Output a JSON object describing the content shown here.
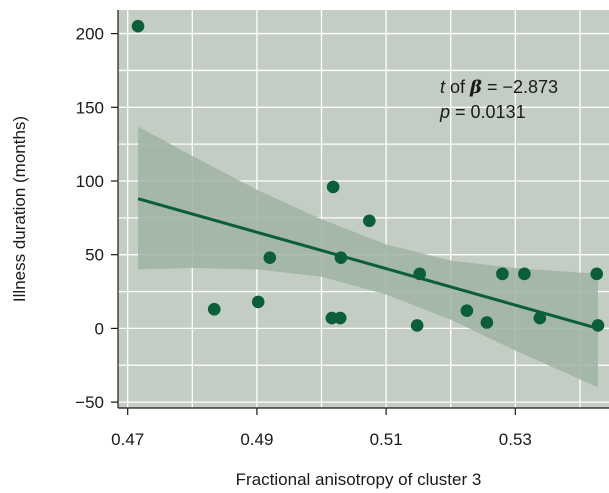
{
  "chart_data": {
    "type": "scatter",
    "title": "",
    "xlabel": "Fractional anisotropy of cluster 3",
    "ylabel": "Illness duration (months)",
    "xlim": [
      0.4685,
      0.5445
    ],
    "ylim": [
      -54,
      216
    ],
    "xticks": [
      0.47,
      0.49,
      0.51,
      0.53
    ],
    "xtick_labels": [
      "0.47",
      "0.49",
      "0.51",
      "0.53"
    ],
    "yticks": [
      -50,
      0,
      50,
      100,
      150,
      200
    ],
    "ytick_labels": [
      "−50",
      "0",
      "50",
      "100",
      "150",
      "200"
    ],
    "grid": true,
    "colors": {
      "panel": "#c3cdc3",
      "grid": "#ffffff",
      "band": "#9fb3a3",
      "line": "#0b5e3a",
      "point": "#0b5e3a"
    },
    "points": [
      {
        "x": 0.4716,
        "y": 205
      },
      {
        "x": 0.4834,
        "y": 13
      },
      {
        "x": 0.4902,
        "y": 18
      },
      {
        "x": 0.492,
        "y": 48
      },
      {
        "x": 0.5018,
        "y": 96
      },
      {
        "x": 0.5016,
        "y": 7
      },
      {
        "x": 0.5029,
        "y": 7
      },
      {
        "x": 0.503,
        "y": 48
      },
      {
        "x": 0.5074,
        "y": 73
      },
      {
        "x": 0.5148,
        "y": 2
      },
      {
        "x": 0.5152,
        "y": 37
      },
      {
        "x": 0.5225,
        "y": 12
      },
      {
        "x": 0.5256,
        "y": 4
      },
      {
        "x": 0.528,
        "y": 37
      },
      {
        "x": 0.5314,
        "y": 37
      },
      {
        "x": 0.5338,
        "y": 7
      },
      {
        "x": 0.5426,
        "y": 37
      },
      {
        "x": 0.5428,
        "y": 2
      }
    ],
    "fit_line": {
      "x": [
        0.4716,
        0.5428
      ],
      "y": [
        88,
        0
      ]
    },
    "confidence_band": {
      "x": [
        0.4716,
        0.48,
        0.49,
        0.5,
        0.51,
        0.52,
        0.53,
        0.5428
      ],
      "upper": [
        137,
        117,
        94,
        74,
        57,
        46,
        41,
        37
      ],
      "lower": [
        40,
        41,
        40,
        35,
        23,
        6,
        -15,
        -40
      ]
    },
    "annotation": {
      "line1_italic": "t",
      "line1_mid": " of ",
      "line1_beta": "β",
      "line1_value": " = −2.873",
      "line2_italic": "p",
      "line2_value": " = 0.0131"
    }
  }
}
